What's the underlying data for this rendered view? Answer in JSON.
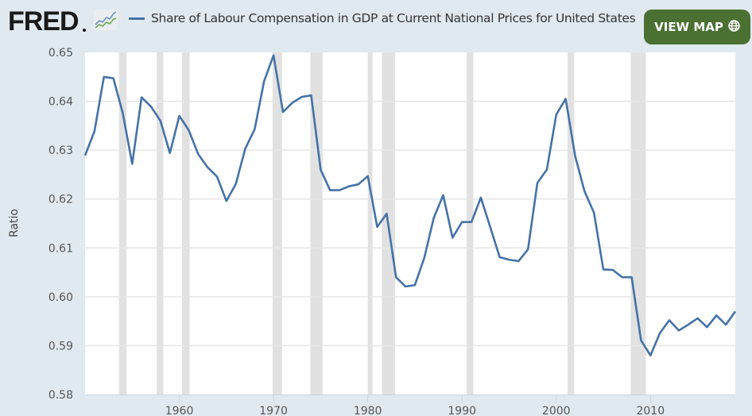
{
  "header": {
    "logo_text": "FRED",
    "logo_icon": "line-chart-icon",
    "series_title": "Share of Labour Compensation in GDP at Current National Prices for United States",
    "view_map_label": "VIEW MAP",
    "view_map_icon": "globe-icon"
  },
  "colors": {
    "series": "#4572a7",
    "recession": "#e1e1e1",
    "button": "#4a7032",
    "background": "#e1e9f0"
  },
  "chart_data": {
    "type": "line",
    "title": "Share of Labour Compensation in GDP at Current National Prices for United States",
    "xlabel": "",
    "ylabel": "Ratio",
    "xlim": [
      1950,
      2019
    ],
    "ylim": [
      0.58,
      0.65
    ],
    "grid": true,
    "legend": "top-left",
    "x_ticks": [
      "1960",
      "1970",
      "1980",
      "1990",
      "2000",
      "2010"
    ],
    "y_ticks": [
      "0.65",
      "0.64",
      "0.63",
      "0.62",
      "0.61",
      "0.60",
      "0.59",
      "0.58"
    ],
    "recessions": [
      [
        1953.6,
        1954.4
      ],
      [
        1957.6,
        1958.3
      ],
      [
        1960.3,
        1961.1
      ],
      [
        1969.9,
        1970.9
      ],
      [
        1973.9,
        1975.2
      ],
      [
        1980.0,
        1980.5
      ],
      [
        1981.5,
        1982.9
      ],
      [
        1990.5,
        1991.2
      ],
      [
        2001.2,
        2001.9
      ],
      [
        2007.9,
        2009.5
      ]
    ],
    "series": [
      {
        "name": "Share of Labour Compensation in GDP at Current National Prices for United States",
        "x": [
          1950,
          1951,
          1952,
          1953,
          1954,
          1955,
          1956,
          1957,
          1958,
          1959,
          1960,
          1961,
          1962,
          1963,
          1964,
          1965,
          1966,
          1967,
          1968,
          1969,
          1970,
          1971,
          1972,
          1973,
          1974,
          1975,
          1976,
          1977,
          1978,
          1979,
          1980,
          1981,
          1982,
          1983,
          1984,
          1985,
          1986,
          1987,
          1988,
          1989,
          1990,
          1991,
          1992,
          1993,
          1994,
          1995,
          1996,
          1997,
          1998,
          1999,
          2000,
          2001,
          2002,
          2003,
          2004,
          2005,
          2006,
          2007,
          2008,
          2009,
          2010,
          2011,
          2012,
          2013,
          2014,
          2015,
          2016,
          2017,
          2018,
          2019
        ],
        "values": [
          0.6289,
          0.6339,
          0.645,
          0.6447,
          0.6376,
          0.6272,
          0.6408,
          0.6389,
          0.636,
          0.6294,
          0.637,
          0.6341,
          0.6292,
          0.6265,
          0.6246,
          0.6196,
          0.6231,
          0.6303,
          0.6343,
          0.6441,
          0.6494,
          0.6378,
          0.6397,
          0.6409,
          0.6412,
          0.626,
          0.6218,
          0.6218,
          0.6226,
          0.623,
          0.6247,
          0.6143,
          0.617,
          0.604,
          0.6021,
          0.6024,
          0.608,
          0.6161,
          0.6208,
          0.6121,
          0.6153,
          0.6153,
          0.6203,
          0.6142,
          0.6081,
          0.6076,
          0.6073,
          0.6097,
          0.6233,
          0.626,
          0.6373,
          0.6405,
          0.6288,
          0.6216,
          0.6172,
          0.6056,
          0.6055,
          0.604,
          0.604,
          0.5911,
          0.588,
          0.5926,
          0.5952,
          0.5931,
          0.5943,
          0.5956,
          0.5938,
          0.5962,
          0.5943,
          0.597
        ]
      }
    ]
  }
}
